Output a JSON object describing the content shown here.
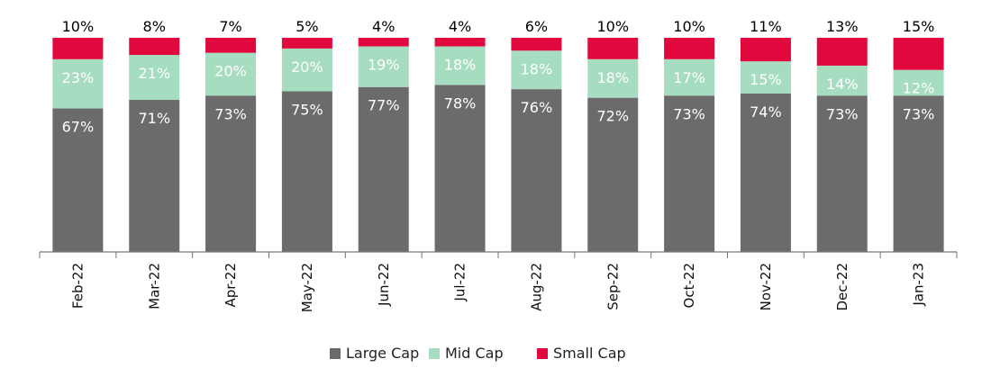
{
  "chart_data": {
    "type": "bar",
    "stacked": true,
    "categories": [
      "Feb-22",
      "Mar-22",
      "Apr-22",
      "May-22",
      "Jun-22",
      "Jul-22",
      "Aug-22",
      "Sep-22",
      "Oct-22",
      "Nov-22",
      "Dec-22",
      "Jan-23"
    ],
    "series": [
      {
        "name": "Large Cap",
        "color": "#6b6b6b",
        "label_color": "#ffffff",
        "values": [
          67,
          71,
          73,
          75,
          77,
          78,
          76,
          72,
          73,
          74,
          73,
          73
        ]
      },
      {
        "name": "Mid Cap",
        "color": "#a6dcc0",
        "label_color": "#ffffff",
        "values": [
          23,
          21,
          20,
          20,
          19,
          18,
          18,
          18,
          17,
          15,
          14,
          12
        ]
      },
      {
        "name": "Small Cap",
        "color": "#e0083c",
        "label_color": "#000000",
        "values": [
          10,
          8,
          7,
          5,
          4,
          4,
          6,
          10,
          10,
          11,
          13,
          15
        ]
      }
    ],
    "labels": {
      "Large Cap": [
        "67%",
        "71%",
        "73%",
        "75%",
        "77%",
        "78%",
        "76%",
        "72%",
        "73%",
        "74%",
        "73%",
        "73%"
      ],
      "Mid Cap": [
        "23%",
        "21%",
        "20%",
        "20%",
        "19%",
        "18%",
        "18%",
        "18%",
        "17%",
        "15%",
        "14%",
        "12%"
      ],
      "Small Cap": [
        "10%",
        "8%",
        "7%",
        "5%",
        "4%",
        "4%",
        "6%",
        "10%",
        "10%",
        "11%",
        "13%",
        "15%"
      ]
    },
    "ylim": [
      0,
      100
    ],
    "legend_position": "bottom",
    "grid": false
  }
}
